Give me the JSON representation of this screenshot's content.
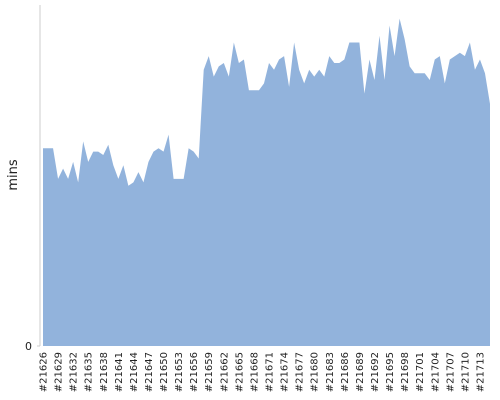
{
  "chart_data": {
    "type": "area",
    "y_label": "mins",
    "color": "#92b3dc",
    "categories": [
      "#21626",
      null,
      null,
      "#21629",
      null,
      null,
      "#21632",
      null,
      null,
      "#21635",
      null,
      null,
      "#21638",
      null,
      null,
      "#21641",
      null,
      null,
      "#21644",
      null,
      null,
      "#21647",
      null,
      null,
      "#21650",
      null,
      null,
      "#21653",
      null,
      null,
      "#21656",
      null,
      null,
      "#21659",
      null,
      null,
      "#21662",
      null,
      null,
      "#21665",
      null,
      null,
      "#21668",
      null,
      null,
      "#21671",
      null,
      null,
      "#21674",
      null,
      null,
      "#21677",
      null,
      null,
      "#21680",
      null,
      null,
      "#21683",
      null,
      null,
      "#21686",
      null,
      null,
      "#21689",
      null,
      null,
      "#21692",
      null,
      null,
      "#21695",
      null,
      null,
      "#21698",
      null,
      null,
      "#21701",
      null,
      null,
      "#21704",
      null,
      null,
      "#21707",
      null,
      null,
      "#21710",
      null,
      null,
      "#21713",
      null,
      null
    ],
    "values": [
      58,
      58,
      58,
      49,
      52,
      49,
      54,
      48,
      60,
      54,
      57,
      57,
      56,
      59,
      53,
      49,
      53,
      47,
      48,
      51,
      48,
      54,
      57,
      58,
      57,
      62,
      49,
      49,
      49,
      58,
      57,
      55,
      81,
      85,
      79,
      82,
      83,
      79,
      89,
      83,
      84,
      75,
      75,
      75,
      77,
      83,
      81,
      84,
      85,
      76,
      89,
      81,
      77,
      81,
      79,
      81,
      79,
      85,
      83,
      83,
      84,
      89,
      89,
      89,
      74,
      84,
      78,
      91,
      78,
      94,
      85,
      96,
      90,
      82,
      80,
      80,
      80,
      78,
      84,
      85,
      77,
      84,
      85,
      86,
      85,
      89,
      81,
      84,
      80,
      71
    ],
    "ylim": [
      0,
      100
    ],
    "yticks": [
      0
    ]
  }
}
